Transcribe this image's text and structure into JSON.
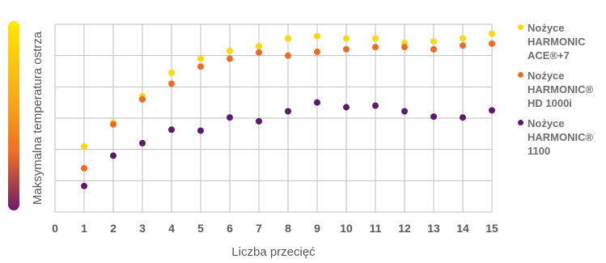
{
  "chart_data": {
    "type": "scatter",
    "xlabel": "Liczba przecięć",
    "ylabel": "Maksymalna temperatura ostrza",
    "x_ticks": [
      0,
      1,
      2,
      3,
      4,
      5,
      6,
      7,
      8,
      9,
      10,
      11,
      12,
      13,
      14,
      15
    ],
    "xlim": [
      0,
      15
    ],
    "ylim": [
      0,
      6
    ],
    "grid": true,
    "legend_position": "right",
    "series": [
      {
        "name": "Nożyce\nHARMONIC\nACE®+7",
        "color": "#fbd80a",
        "x": [
          1,
          2,
          3,
          4,
          5,
          6,
          7,
          8,
          9,
          10,
          11,
          12,
          13,
          14,
          15
        ],
        "y": [
          2.1,
          2.85,
          3.7,
          4.45,
          4.9,
          5.15,
          5.3,
          5.55,
          5.62,
          5.55,
          5.55,
          5.4,
          5.45,
          5.55,
          5.7
        ]
      },
      {
        "name": "Nożyce\nHARMONIC®\nHD 1000i",
        "color": "#ef6c22",
        "x": [
          1,
          2,
          3,
          4,
          5,
          6,
          7,
          8,
          9,
          10,
          11,
          12,
          13,
          14,
          15
        ],
        "y": [
          1.4,
          2.8,
          3.6,
          4.1,
          4.65,
          4.9,
          5.1,
          5.0,
          5.12,
          5.2,
          5.27,
          5.27,
          5.2,
          5.32,
          5.38
        ]
      },
      {
        "name": "Nożyce\nHARMONIC®\n1100",
        "color": "#5b1a6e",
        "x": [
          1,
          2,
          3,
          4,
          5,
          6,
          7,
          8,
          9,
          10,
          11,
          12,
          13,
          14,
          15
        ],
        "y": [
          0.83,
          1.8,
          2.2,
          2.63,
          2.6,
          3.02,
          2.9,
          3.22,
          3.5,
          3.35,
          3.4,
          3.22,
          3.05,
          3.02,
          3.25
        ]
      }
    ]
  }
}
